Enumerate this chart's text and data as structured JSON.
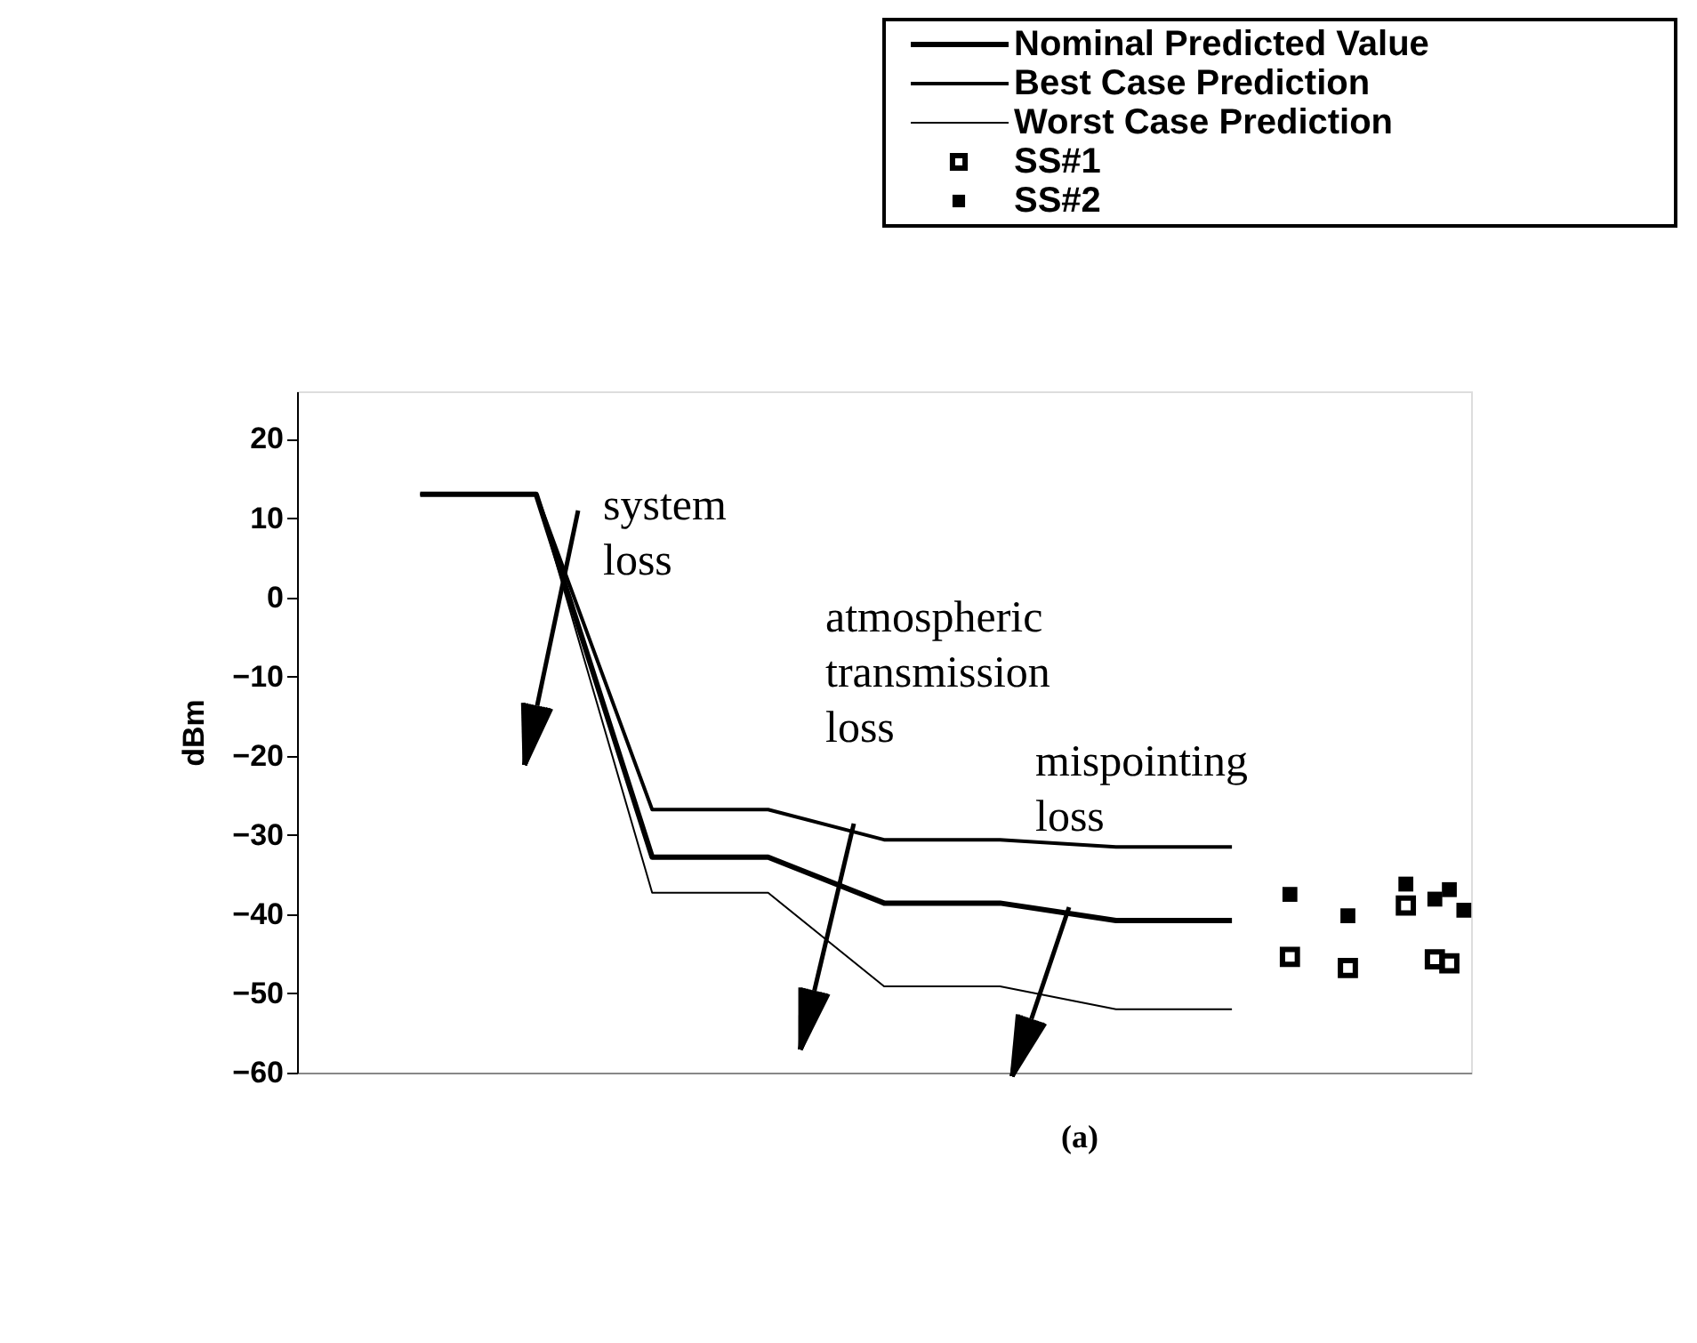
{
  "chart_data": {
    "type": "line",
    "ylabel": "dBm",
    "categories": [
      null,
      null,
      null,
      null,
      null,
      null,
      null,
      null,
      null,
      null,
      null,
      null,
      null,
      null,
      null,
      null,
      null,
      null,
      null,
      null,
      null,
      null,
      null,
      null,
      null,
      null,
      null,
      null,
      null,
      null,
      null,
      null,
      null,
      null,
      null,
      null,
      null,
      null,
      null,
      null,
      null,
      null,
      null,
      null,
      null,
      null,
      null,
      null,
      null,
      null,
      null,
      null,
      null,
      null,
      null,
      null,
      null,
      null,
      null,
      null,
      null,
      null,
      null,
      null,
      null,
      null,
      null,
      null,
      null,
      null,
      null,
      null,
      null,
      null,
      null,
      null,
      null,
      null,
      null,
      null,
      null
    ],
    "series": [
      {
        "name": "Nominal Predicted Value",
        "color": "#000000",
        "values": [
          null,
          null,
          null,
          null,
          null,
          null,
          null,
          null,
          13,
          null,
          null,
          null,
          null,
          null,
          null,
          null,
          13,
          null,
          null,
          null,
          null,
          null,
          null,
          null,
          -32.8,
          null,
          null,
          null,
          null,
          null,
          null,
          null,
          -32.8,
          null,
          null,
          null,
          null,
          null,
          null,
          null,
          -38.6,
          null,
          null,
          null,
          null,
          null,
          null,
          null,
          -38.6,
          null,
          null,
          null,
          null,
          null,
          null,
          null,
          -40.8,
          null,
          null,
          null,
          null,
          null,
          null,
          null,
          -40.8,
          null,
          null,
          null,
          null,
          null,
          null,
          null,
          null,
          null,
          null,
          null,
          null,
          null,
          null,
          null,
          null
        ]
      },
      {
        "name": "Best Case Prediction",
        "color": "#000000",
        "values": [
          null,
          null,
          null,
          null,
          null,
          null,
          null,
          null,
          13,
          null,
          null,
          null,
          null,
          null,
          null,
          null,
          13,
          null,
          null,
          null,
          null,
          null,
          null,
          null,
          -26.8,
          null,
          null,
          null,
          null,
          null,
          null,
          null,
          -26.8,
          null,
          null,
          null,
          null,
          null,
          null,
          null,
          -30.6,
          null,
          null,
          null,
          null,
          null,
          null,
          null,
          -30.6,
          null,
          null,
          null,
          null,
          null,
          null,
          null,
          -31.5,
          null,
          null,
          null,
          null,
          null,
          null,
          null,
          -31.5,
          null,
          null,
          null,
          null,
          null,
          null,
          null,
          null,
          null,
          null,
          null,
          null,
          null,
          null,
          null,
          null
        ]
      },
      {
        "name": "Worst Case Prediction",
        "color": "#000000",
        "values": [
          null,
          null,
          null,
          null,
          null,
          null,
          null,
          null,
          13,
          null,
          null,
          null,
          null,
          null,
          null,
          null,
          13,
          null,
          null,
          null,
          null,
          null,
          null,
          null,
          -37.3,
          null,
          null,
          null,
          null,
          null,
          null,
          null,
          -37.3,
          null,
          null,
          null,
          null,
          null,
          null,
          null,
          -49.1,
          null,
          null,
          null,
          null,
          null,
          null,
          null,
          -49.1,
          null,
          null,
          null,
          null,
          null,
          null,
          null,
          -52,
          null,
          null,
          null,
          null,
          null,
          null,
          null,
          -52,
          null,
          null,
          null,
          null,
          null,
          null,
          null,
          null,
          null,
          null,
          null,
          null,
          null,
          null,
          null,
          null
        ]
      },
      {
        "name": "SS#1",
        "color": "#000000",
        "type": "scatter",
        "marker": "square",
        "values": [
          null,
          null,
          null,
          null,
          null,
          null,
          null,
          null,
          null,
          null,
          null,
          null,
          null,
          null,
          null,
          null,
          null,
          null,
          null,
          null,
          null,
          null,
          null,
          null,
          null,
          null,
          null,
          null,
          null,
          null,
          null,
          null,
          null,
          null,
          null,
          null,
          null,
          null,
          null,
          null,
          null,
          null,
          null,
          null,
          null,
          null,
          null,
          null,
          null,
          null,
          null,
          null,
          null,
          null,
          null,
          null,
          null,
          null,
          null,
          null,
          null,
          null,
          null,
          null,
          null,
          null,
          null,
          null,
          -45.4,
          null,
          null,
          null,
          -46.8,
          null,
          null,
          null,
          -38.9,
          null,
          -45.7,
          -46.2,
          null
        ]
      },
      {
        "name": "SS#2",
        "color": "#000000",
        "type": "scatter",
        "marker": "square",
        "values": [
          null,
          null,
          null,
          null,
          null,
          null,
          null,
          null,
          null,
          null,
          null,
          null,
          null,
          null,
          null,
          null,
          null,
          null,
          null,
          null,
          null,
          null,
          null,
          null,
          null,
          null,
          null,
          null,
          null,
          null,
          null,
          null,
          null,
          null,
          null,
          null,
          null,
          null,
          null,
          null,
          null,
          null,
          null,
          null,
          null,
          null,
          null,
          null,
          null,
          null,
          null,
          null,
          null,
          null,
          null,
          null,
          null,
          null,
          null,
          null,
          null,
          null,
          null,
          null,
          null,
          null,
          null,
          null,
          -37.5,
          null,
          null,
          null,
          -40.2,
          null,
          null,
          null,
          -36.2,
          null,
          -38.1,
          -36.9,
          -39.5
        ]
      }
    ],
    "ylim": [
      -60,
      26
    ],
    "yticks": [
      20,
      10,
      0,
      -10,
      -20,
      -30,
      -40,
      -50,
      -60
    ],
    "tick_labels": "y",
    "grid": false,
    "legend": "top right",
    "annotations": [
      "system loss",
      "atmospheric transmission loss",
      "mispointing loss",
      "(a)"
    ]
  }
}
